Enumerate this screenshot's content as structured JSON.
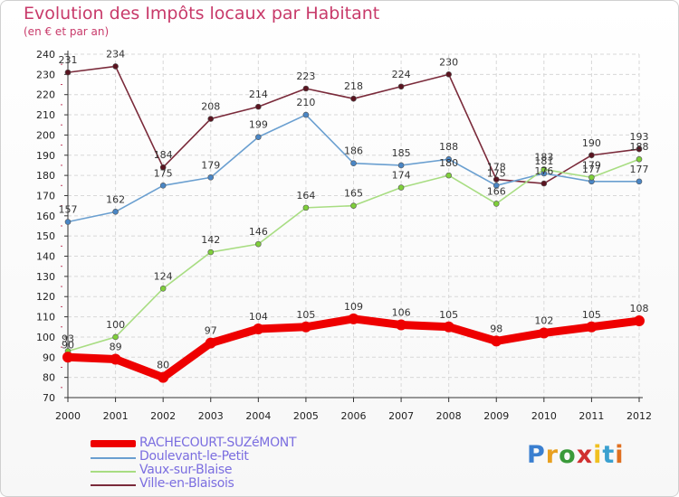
{
  "header": {
    "title": "Evolution des Impôts locaux par Habitant",
    "subtitle": "(en € et par an)"
  },
  "logo": {
    "text": "Proxiti"
  },
  "chart_data": {
    "type": "line",
    "title": "Evolution des Impôts locaux par Habitant",
    "subtitle": "(en € et par an)",
    "xlabel": "",
    "ylabel": "",
    "x": [
      2000,
      2001,
      2002,
      2003,
      2004,
      2005,
      2006,
      2007,
      2008,
      2009,
      2010,
      2011,
      2012
    ],
    "ylim": [
      70,
      240
    ],
    "yticks": [
      70,
      80,
      90,
      100,
      110,
      120,
      130,
      140,
      150,
      160,
      170,
      180,
      190,
      200,
      210,
      220,
      230,
      240
    ],
    "grid": true,
    "legend_position": "bottom-left",
    "series": [
      {
        "name": "RACHECOURT-SUZéMONT",
        "color": "#ee0000",
        "point_color": "#ee0000",
        "values": [
          90,
          89,
          80,
          97,
          104,
          105,
          109,
          106,
          105,
          98,
          102,
          105,
          108
        ]
      },
      {
        "name": "Doulevant-le-Petit",
        "color": "#6a9fd0",
        "point_color": "#4a86c5",
        "values": [
          157,
          162,
          175,
          179,
          199,
          210,
          186,
          185,
          188,
          175,
          181,
          177,
          177
        ]
      },
      {
        "name": "Vaux-sur-Blaise",
        "color": "#a8dd82",
        "point_color": "#7fcf3a",
        "values": [
          93,
          100,
          124,
          142,
          146,
          164,
          165,
          174,
          180,
          166,
          183,
          179,
          188
        ]
      },
      {
        "name": "Ville-en-Blaisois",
        "color": "#7a2a3a",
        "point_color": "#5a1420",
        "values": [
          231,
          234,
          184,
          208,
          214,
          223,
          218,
          224,
          230,
          178,
          176,
          190,
          193
        ]
      }
    ]
  }
}
